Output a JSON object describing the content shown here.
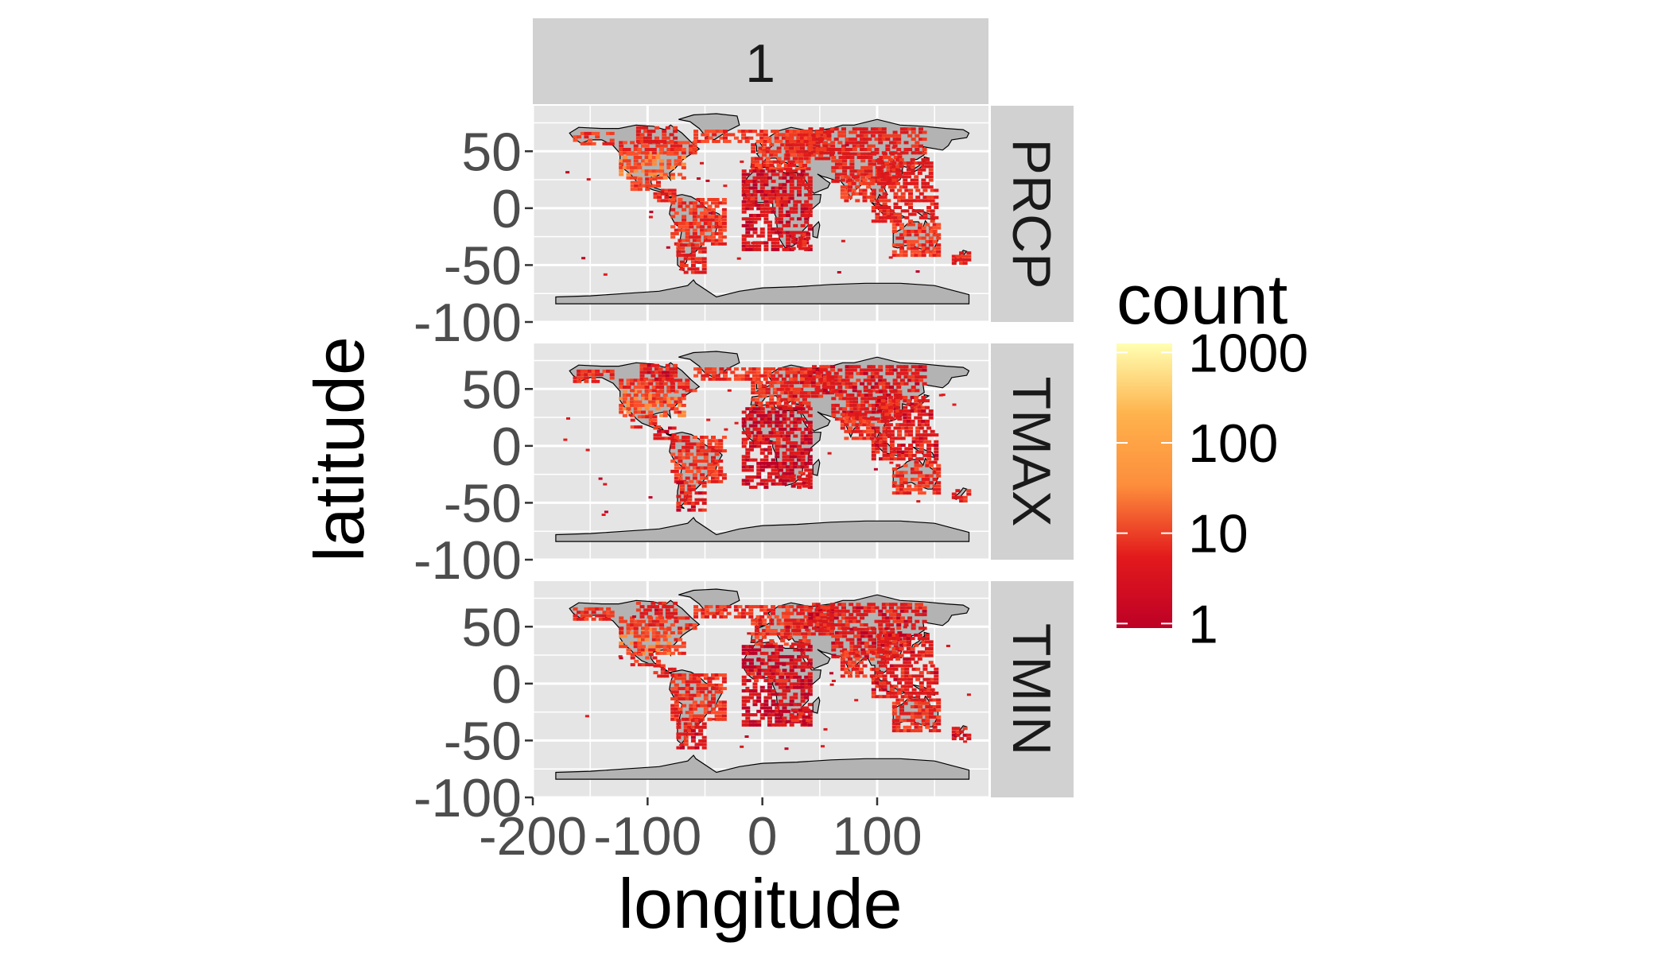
{
  "chart_data": {
    "type": "heatmap",
    "facet_column_label": "1",
    "facets": [
      "PRCP",
      "TMAX",
      "TMIN"
    ],
    "xlabel": "longitude",
    "ylabel": "latitude",
    "x_ticks": [
      -200,
      -100,
      0,
      100
    ],
    "x_tick_labels": [
      "-200",
      "-100",
      "0",
      "100"
    ],
    "y_ticks": [
      50,
      0,
      -50,
      -100
    ],
    "y_tick_labels": [
      "50",
      "0",
      "-50",
      "-100"
    ],
    "xlim": [
      -200,
      197
    ],
    "ylim": [
      -100,
      90
    ],
    "grid": true,
    "legend": {
      "title": "count",
      "scale": "log10",
      "breaks": [
        1,
        10,
        100,
        1000
      ],
      "break_labels": [
        "1",
        "10",
        "100",
        "1000"
      ],
      "colors": [
        "#bd0026",
        "#e31a1c",
        "#fd8d3c",
        "#feb24c",
        "#ffffb2"
      ],
      "placement": "right"
    },
    "colors": {
      "panel_bg": "#e5e5e5",
      "grid": "#ffffff",
      "strip_bg": "#d1d1d1",
      "land": "#b3b3b3"
    }
  }
}
